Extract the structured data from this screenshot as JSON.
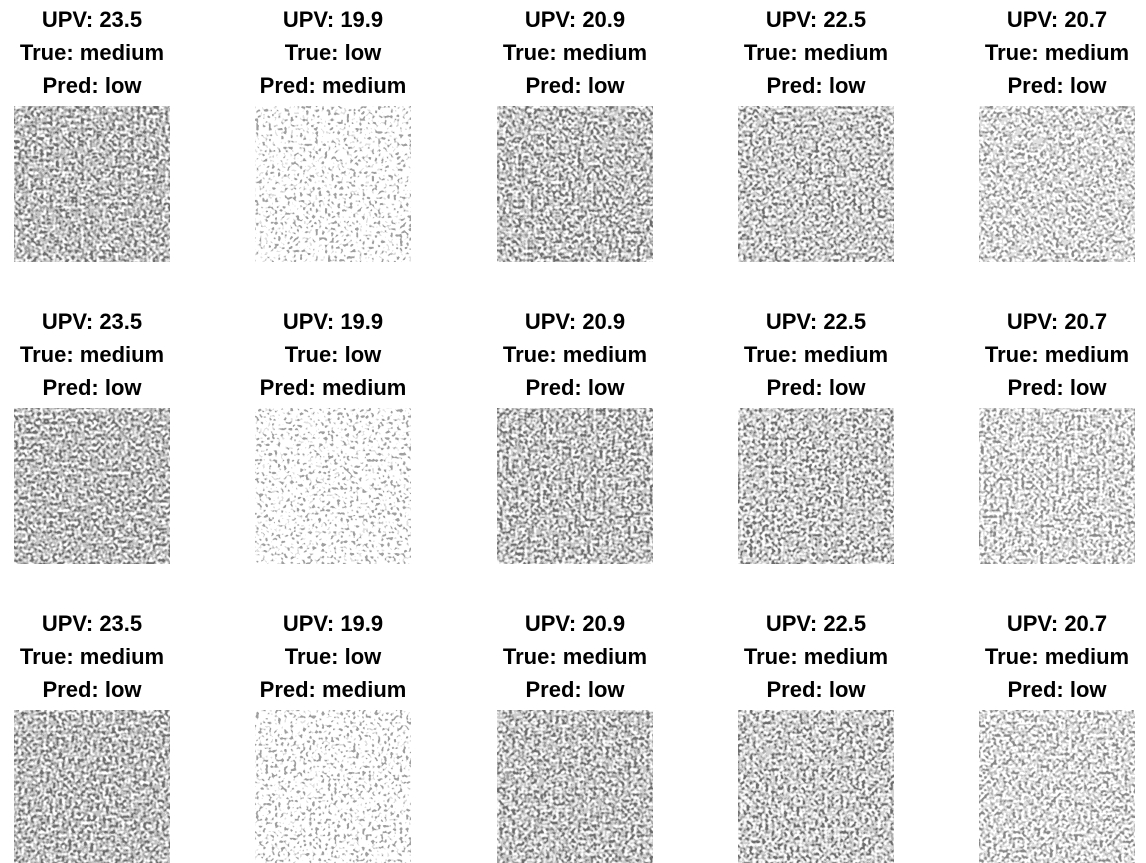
{
  "panels": [
    {
      "lines": [
        "UPV: 23.5",
        "True: medium",
        "Pred: low"
      ]
    },
    {
      "lines": [
        "UPV: 19.9",
        "True: low",
        "Pred: medium"
      ]
    },
    {
      "lines": [
        "UPV: 20.9",
        "True: medium",
        "Pred: low"
      ]
    },
    {
      "lines": [
        "UPV: 22.5",
        "True: medium",
        "Pred: low"
      ]
    },
    {
      "lines": [
        "UPV: 20.7",
        "True: medium",
        "Pred: low"
      ]
    },
    {
      "lines": [
        "UPV: 23.5",
        "True: medium",
        "Pred: low"
      ]
    },
    {
      "lines": [
        "UPV: 19.9",
        "True: low",
        "Pred: medium"
      ]
    },
    {
      "lines": [
        "UPV: 20.9",
        "True: medium",
        "Pred: low"
      ]
    },
    {
      "lines": [
        "UPV: 22.5",
        "True: medium",
        "Pred: low"
      ]
    },
    {
      "lines": [
        "UPV: 20.7",
        "True: medium",
        "Pred: low"
      ]
    },
    {
      "lines": [
        "UPV: 23.5",
        "True: medium",
        "Pred: low"
      ]
    },
    {
      "lines": [
        "UPV: 19.9",
        "True: low",
        "Pred: medium"
      ]
    },
    {
      "lines": [
        "UPV: 20.9",
        "True: medium",
        "Pred: low"
      ]
    },
    {
      "lines": [
        "UPV: 22.5",
        "True: medium",
        "Pred: low"
      ]
    },
    {
      "lines": [
        "UPV: 20.7",
        "True: medium",
        "Pred: low"
      ]
    }
  ]
}
